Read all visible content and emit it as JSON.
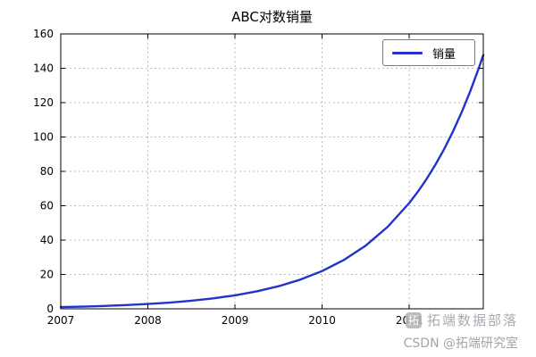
{
  "figure": {
    "background": "#ffffff"
  },
  "chart_data": {
    "type": "line",
    "title": "ABC对数销量",
    "legend": [
      "销量"
    ],
    "legend_position": "upper right",
    "xlabel": "",
    "ylabel": "",
    "xlim": [
      2007,
      2011.85
    ],
    "ylim": [
      0,
      160
    ],
    "grid": true,
    "xticks": {
      "values": [
        2007,
        2008,
        2009,
        2010,
        2011
      ],
      "labels": [
        "2007",
        "2008",
        "2009",
        "2010",
        "2011"
      ]
    },
    "yticks": {
      "values": [
        0,
        20,
        40,
        60,
        80,
        100,
        120,
        140,
        160
      ],
      "labels": [
        "0",
        "20",
        "40",
        "60",
        "80",
        "100",
        "120",
        "140",
        "160"
      ]
    },
    "colors": {
      "line": "#2234c8",
      "grid": "#bdbdbd",
      "axis": "#000000",
      "tick_label": "#000000"
    },
    "series": [
      {
        "name": "销量",
        "x": [
          2007,
          2007.25,
          2007.5,
          2007.75,
          2008,
          2008.25,
          2008.5,
          2008.75,
          2009,
          2009.25,
          2009.5,
          2009.75,
          2010,
          2010.25,
          2010.5,
          2010.75,
          2011,
          2011.1,
          2011.2,
          2011.3,
          2011.4,
          2011.5,
          2011.6,
          2011.7,
          2011.8,
          2011.85
        ],
        "y": [
          1.0,
          1.29,
          1.67,
          2.17,
          2.8,
          3.62,
          4.69,
          6.07,
          7.85,
          10.15,
          13.13,
          16.99,
          21.98,
          28.43,
          36.78,
          47.59,
          61.56,
          68.23,
          75.63,
          83.83,
          92.9,
          103.0,
          114.2,
          126.6,
          140.3,
          147.7
        ]
      }
    ]
  },
  "watermark": {
    "logo_text": "拓",
    "line1": "拓端数据部落",
    "line2": "CSDN @拓端研究室"
  }
}
